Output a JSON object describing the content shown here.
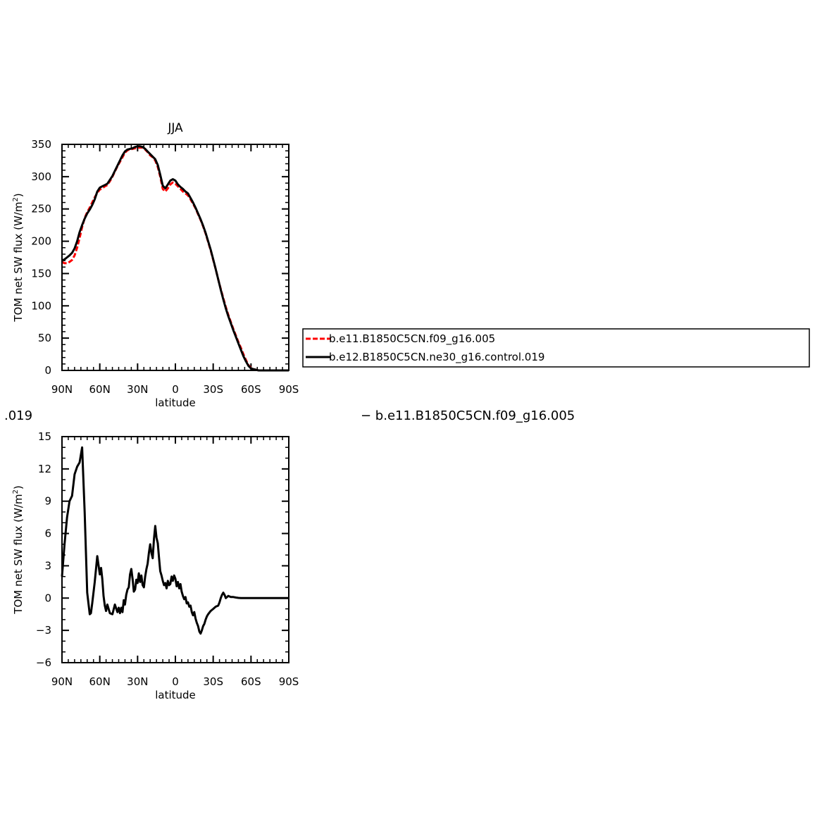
{
  "chart_data": [
    {
      "type": "line",
      "title": "JJA",
      "xlabel": "latitude",
      "ylabel": "TOM net SW flux",
      "yunit_base": "W/m",
      "yunit_sup": "2",
      "xlim": [
        90,
        -90
      ],
      "ylim": [
        0,
        350
      ],
      "xtick_values": [
        90,
        60,
        30,
        0,
        -30,
        -60,
        -90
      ],
      "xtick_labels": [
        "90N",
        "60N",
        "30N",
        "0",
        "30S",
        "60S",
        "90S"
      ],
      "ytick_values": [
        0,
        50,
        100,
        150,
        200,
        250,
        300,
        350
      ],
      "ytick_labels": [
        "0",
        "50",
        "100",
        "150",
        "200",
        "250",
        "300",
        "350"
      ],
      "legend_placement": "outside-right",
      "series": [
        {
          "name": "b.e11.B1850C5CN.f09_g16.005",
          "color": "#ff0000",
          "style": "dashed",
          "x": [
            90,
            88,
            86,
            84,
            82,
            80,
            78,
            76,
            74,
            72,
            70,
            68,
            66,
            64,
            62,
            60,
            58,
            56,
            54,
            52,
            50,
            48,
            46,
            44,
            42,
            40,
            38,
            36,
            34,
            32,
            30,
            28,
            26,
            24,
            22,
            20,
            18,
            16,
            14,
            12,
            10,
            8,
            6,
            4,
            2,
            0,
            -2,
            -4,
            -6,
            -8,
            -10,
            -12,
            -14,
            -16,
            -18,
            -20,
            -22,
            -24,
            -26,
            -28,
            -30,
            -32,
            -34,
            -36,
            -38,
            -40,
            -42,
            -44,
            -46,
            -48,
            -50,
            -52,
            -54,
            -56,
            -58,
            -60,
            -62,
            -64,
            -66,
            -68,
            -70,
            -72,
            -74,
            -76,
            -78,
            -80,
            -82,
            -84,
            -86,
            -88,
            -90
          ],
          "y": [
            168,
            166,
            166,
            168,
            171,
            178,
            190,
            205,
            222,
            236,
            245,
            252,
            260,
            268,
            275,
            280,
            282,
            285,
            287,
            293,
            300,
            308,
            316,
            323,
            330,
            337,
            341,
            342,
            343,
            344,
            345,
            345,
            345,
            342,
            338,
            333,
            330,
            325,
            315,
            300,
            281,
            277,
            282,
            288,
            291,
            289,
            285,
            281,
            277,
            274,
            271,
            265,
            258,
            251,
            242,
            233,
            223,
            212,
            199,
            186,
            171,
            157,
            141,
            126,
            112,
            98,
            86,
            75,
            64,
            54,
            44,
            35,
            25,
            16,
            8,
            4,
            2,
            1,
            0,
            0,
            0,
            0,
            0,
            0,
            0,
            0,
            0,
            0,
            0,
            0,
            0
          ]
        },
        {
          "name": "b.e12.B1850C5CN.ne30_g16.control.019",
          "color": "#000000",
          "style": "solid",
          "x": [
            90,
            88,
            86,
            84,
            82,
            80,
            78,
            76,
            74,
            72,
            70,
            68,
            66,
            64,
            62,
            60,
            58,
            56,
            54,
            52,
            50,
            48,
            46,
            44,
            42,
            40,
            38,
            36,
            34,
            32,
            30,
            28,
            26,
            24,
            22,
            20,
            18,
            16,
            14,
            12,
            10,
            8,
            6,
            4,
            2,
            0,
            -2,
            -4,
            -6,
            -8,
            -10,
            -12,
            -14,
            -16,
            -18,
            -20,
            -22,
            -24,
            -26,
            -28,
            -30,
            -32,
            -34,
            -36,
            -38,
            -40,
            -42,
            -44,
            -46,
            -48,
            -50,
            -52,
            -54,
            -56,
            -58,
            -60,
            -62,
            -64,
            -66,
            -68,
            -70,
            -72,
            -74,
            -76,
            -78,
            -80,
            -82,
            -84,
            -86,
            -88,
            -90
          ],
          "y": [
            170,
            172,
            175,
            178,
            182,
            189,
            200,
            214,
            225,
            235,
            243,
            249,
            256,
            265,
            277,
            283,
            285,
            287,
            289,
            295,
            301,
            309,
            317,
            325,
            333,
            339,
            342,
            343,
            344,
            346,
            347,
            347,
            346,
            343,
            339,
            335,
            331,
            327,
            318,
            303,
            286,
            282,
            288,
            294,
            296,
            294,
            288,
            284,
            281,
            277,
            274,
            267,
            260,
            252,
            243,
            234,
            224,
            213,
            200,
            187,
            172,
            157,
            141,
            125,
            110,
            96,
            84,
            73,
            62,
            52,
            42,
            32,
            22,
            14,
            7,
            3,
            2,
            1,
            0,
            0,
            0,
            0,
            0,
            0,
            0,
            0,
            0,
            0,
            0,
            0,
            0
          ]
        }
      ]
    },
    {
      "type": "line",
      "title": "",
      "xlabel": "latitude",
      "ylabel": "TOM net SW flux",
      "yunit_base": "W/m",
      "yunit_sup": "2",
      "xlim": [
        90,
        -90
      ],
      "ylim": [
        -6,
        15
      ],
      "xtick_values": [
        90,
        60,
        30,
        0,
        -30,
        -60,
        -90
      ],
      "xtick_labels": [
        "90N",
        "60N",
        "30N",
        "0",
        "30S",
        "60S",
        "90S"
      ],
      "ytick_values": [
        -6,
        -3,
        0,
        3,
        6,
        9,
        12,
        15
      ],
      "ytick_labels": [
        "−6",
        "−3",
        "0",
        "3",
        "6",
        "9",
        "12",
        "15"
      ],
      "series": [
        {
          "color": "#000000",
          "style": "solid",
          "x": [
            90,
            88,
            86,
            84,
            82,
            80,
            78,
            76,
            74,
            72,
            70,
            68,
            67,
            66,
            64,
            62,
            60,
            59,
            58,
            57,
            56,
            55,
            54,
            52,
            50,
            48,
            46,
            45,
            44,
            43,
            42,
            41,
            40,
            39,
            38,
            37,
            36,
            35,
            34,
            33,
            32,
            31,
            30,
            29,
            28,
            27,
            26,
            25,
            24,
            23,
            22,
            21,
            20,
            19,
            18,
            17,
            16,
            15,
            14,
            13,
            12,
            11,
            10,
            9,
            8,
            7,
            6,
            5,
            4,
            3,
            2,
            1,
            0,
            -1,
            -2,
            -3,
            -4,
            -5,
            -6,
            -7,
            -8,
            -9,
            -10,
            -11,
            -12,
            -13,
            -14,
            -15,
            -16,
            -17,
            -18,
            -19,
            -20,
            -21,
            -22,
            -23,
            -24,
            -25,
            -26,
            -28,
            -30,
            -32,
            -34,
            -35,
            -36,
            -37,
            -38,
            -39,
            -40,
            -42,
            -44,
            -46,
            -48,
            -50,
            -52,
            -54,
            -56,
            -57,
            -58,
            -59,
            -60,
            -61,
            -62,
            -63,
            -64,
            -66,
            -68,
            -70,
            -72,
            -75,
            -78,
            -81,
            -84,
            -87,
            -90
          ],
          "y": [
            2,
            5,
            7.5,
            9,
            9.5,
            11.5,
            12.2,
            12.6,
            14,
            8,
            0.5,
            -1.5,
            -1.4,
            -0.5,
            1.5,
            3.9,
            2.2,
            2.8,
            1.8,
            0.2,
            -0.7,
            -1.2,
            -0.6,
            -1.4,
            -1.5,
            -0.6,
            -1.3,
            -0.9,
            -1.4,
            -0.9,
            -1.3,
            -0.2,
            -0.6,
            0.3,
            0.8,
            1.0,
            2.2,
            2.7,
            1.8,
            0.6,
            0.8,
            1.7,
            1.4,
            2.3,
            1.5,
            2.1,
            1.2,
            1.0,
            2.0,
            2.7,
            3.2,
            4.2,
            5.0,
            4.2,
            3.7,
            5.5,
            6.7,
            5.6,
            5.1,
            3.8,
            2.5,
            2.1,
            1.6,
            1.2,
            1.4,
            0.9,
            1.6,
            1.2,
            1.3,
            2.0,
            1.6,
            2.1,
            1.8,
            1.1,
            1.5,
            0.9,
            1.3,
            0.6,
            0.2,
            -0.1,
            0.1,
            -0.5,
            -0.4,
            -0.8,
            -0.7,
            -1.3,
            -1.6,
            -1.3,
            -1.9,
            -2.3,
            -2.6,
            -3.1,
            -3.3,
            -3.0,
            -2.6,
            -2.4,
            -2.0,
            -1.7,
            -1.5,
            -1.2,
            -1.0,
            -0.8,
            -0.7,
            -0.4,
            0.0,
            0.3,
            0.5,
            0.3,
            0.0,
            0.2,
            0.1,
            0.1,
            0.05,
            0.02,
            0,
            0,
            0,
            0,
            0,
            0,
            0,
            0,
            0,
            0,
            0,
            0,
            0,
            0,
            0,
            0,
            0,
            0,
            0,
            0,
            0
          ]
        }
      ]
    }
  ],
  "fragments": {
    "left": ".019",
    "right": "−  b.e11.B1850C5CN.f09_g16.005"
  }
}
